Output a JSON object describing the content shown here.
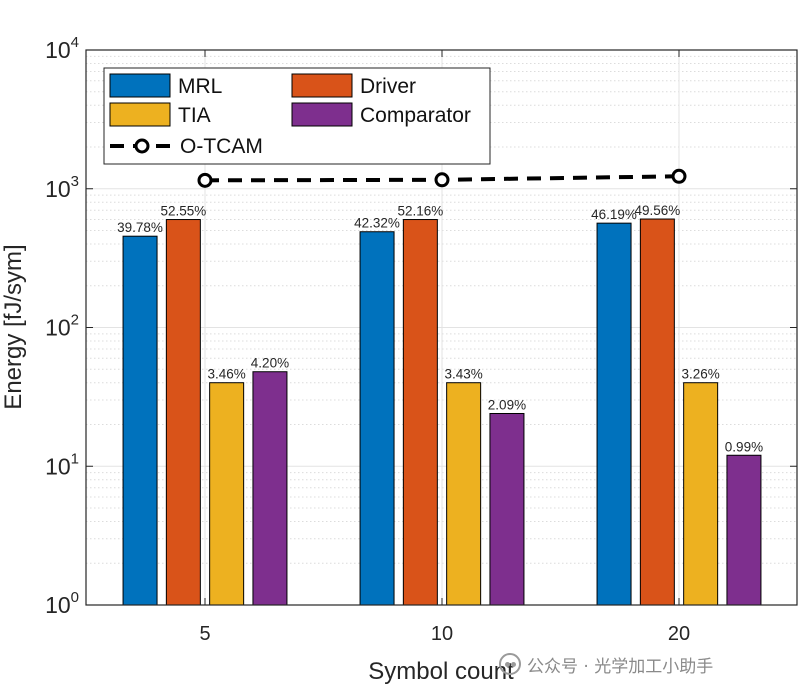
{
  "chart_data": {
    "type": "bar",
    "y_scale": "log",
    "categories": [
      "5",
      "10",
      "20"
    ],
    "xlabel": "Symbol count",
    "ylabel": "Energy [fJ/sym]",
    "ylim": [
      1,
      10000
    ],
    "y_ticks": [
      {
        "value": 1,
        "base": "10",
        "exp": "0"
      },
      {
        "value": 10,
        "base": "10",
        "exp": "1"
      },
      {
        "value": 100,
        "base": "10",
        "exp": "2"
      },
      {
        "value": 1000,
        "base": "10",
        "exp": "3"
      },
      {
        "value": 10000,
        "base": "10",
        "exp": "4"
      }
    ],
    "grid": true,
    "legend_position": "top-left",
    "series": [
      {
        "name": "MRL",
        "color": "#0072BD",
        "values": [
          455,
          490,
          565
        ],
        "labels": [
          "39.78%",
          "42.32%",
          "46.19%"
        ]
      },
      {
        "name": "Driver",
        "color": "#D95319",
        "values": [
          600,
          600,
          605
        ],
        "labels": [
          "52.55%",
          "52.16%",
          "49.56%"
        ]
      },
      {
        "name": "TIA",
        "color": "#EDB120",
        "values": [
          40,
          40,
          40
        ],
        "labels": [
          "3.46%",
          "3.43%",
          "3.26%"
        ]
      },
      {
        "name": "Comparator",
        "color": "#7E2F8E",
        "values": [
          48,
          24,
          12
        ],
        "labels": [
          "4.20%",
          "2.09%",
          "0.99%"
        ]
      }
    ],
    "line_series": {
      "name": "O-TCAM",
      "color": "#000000",
      "style": "dashed",
      "marker": "circle",
      "values": [
        1150,
        1160,
        1230
      ]
    }
  },
  "watermark": {
    "text": "公众号 · 光学加工小助手",
    "icon": "wechat-icon"
  }
}
